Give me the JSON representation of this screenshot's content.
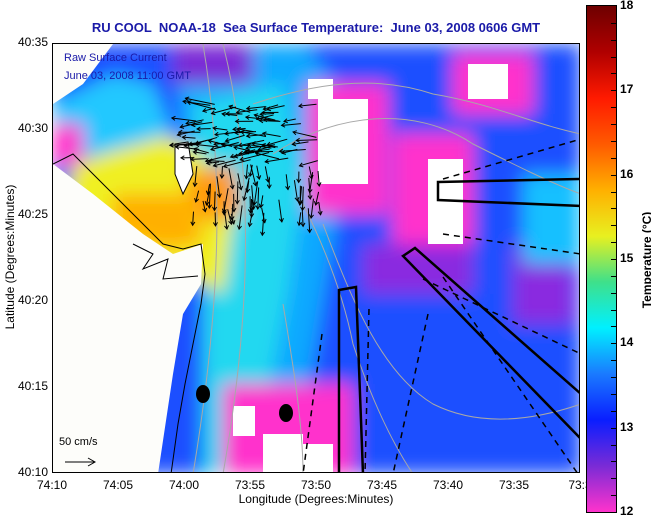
{
  "chart_data": {
    "type": "heatmap",
    "title": "RU COOL  NOAA-18  Sea Surface Temperature:  June 03, 2008 0606 GMT",
    "xlabel": "Longitude (Degrees:Minutes)",
    "ylabel": "Latitude (Degrees:Minutes)",
    "x_ticks": [
      "74:10",
      "74:05",
      "74:00",
      "73:55",
      "73:50",
      "73:45",
      "73:40",
      "73:35",
      "73:3"
    ],
    "y_ticks": [
      "40:35",
      "40:30",
      "40:25",
      "40:20",
      "40:15",
      "40:10"
    ],
    "xlim": [
      "74:10",
      "73:30"
    ],
    "ylim": [
      "40:10",
      "40:35"
    ],
    "colorbar": {
      "label": "Temperature (°C)",
      "range": [
        12,
        18
      ],
      "ticks": [
        "18",
        "17",
        "16",
        "15",
        "14",
        "13",
        "12"
      ],
      "colors": [
        "#ff33cc",
        "#7a2bd6",
        "#0a1eff",
        "#1a7aff",
        "#00f0ff",
        "#3fe08a",
        "#e8f020",
        "#ffb000",
        "#ff5a00",
        "#ff1a00",
        "#b00000",
        "#6e0000"
      ]
    },
    "overlays": {
      "current_label": "Raw Surface Current",
      "current_time": "June 03, 2008 11:00 GMT",
      "scale_label": "50 cm/s"
    },
    "grid": false
  }
}
